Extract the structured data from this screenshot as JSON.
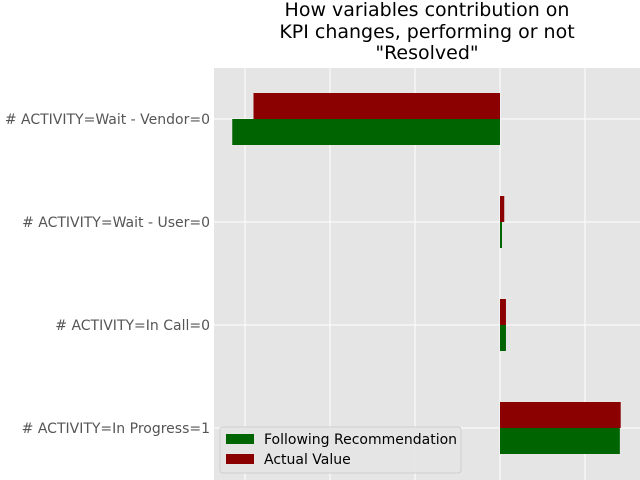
{
  "chart_data": {
    "type": "bar",
    "orientation": "horizontal",
    "title_lines": [
      "How variables contribution on",
      "KPI changes, performing or not",
      "\"Resolved\""
    ],
    "categories": [
      "# ACTIVITY=Wait - Vendor=0",
      "# ACTIVITY=Wait - User=0",
      "# ACTIVITY=In Call=0",
      "# ACTIVITY=In Progress=1"
    ],
    "series": [
      {
        "name": "Following Recommendation",
        "color": "#006400",
        "values": [
          -0.315,
          0.002,
          0.007,
          0.141
        ]
      },
      {
        "name": "Actual Value",
        "color": "#8b0000",
        "values": [
          -0.29,
          0.005,
          0.007,
          0.142
        ]
      }
    ],
    "xlim": [
      -0.335,
      0.165
    ],
    "grid": true,
    "background": "#e5e5e5",
    "legend_position": "lower-left"
  }
}
